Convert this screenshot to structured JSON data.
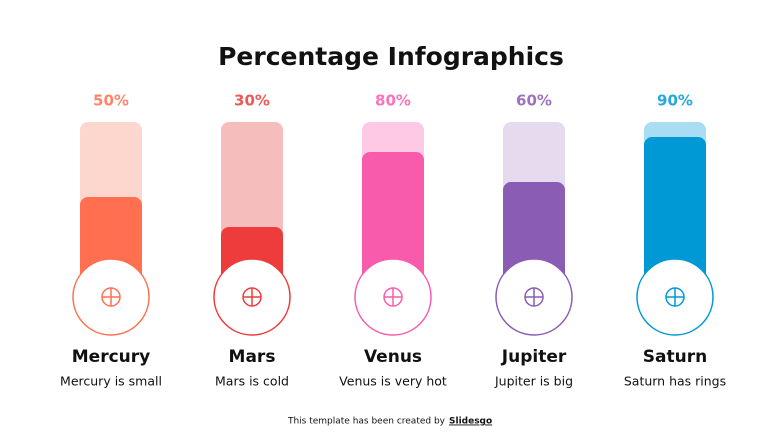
{
  "chart_data": {
    "type": "bar",
    "title": "Percentage Infographics",
    "categories": [
      "Mercury",
      "Mars",
      "Venus",
      "Jupiter",
      "Saturn"
    ],
    "descriptions": [
      "Mercury is small",
      "Mars is cold",
      "Venus is very hot",
      "Jupiter is big",
      "Saturn has rings"
    ],
    "values": [
      50,
      30,
      80,
      60,
      90
    ],
    "value_labels": [
      "50%",
      "30%",
      "80%",
      "60%",
      "90%"
    ],
    "colors": [
      "#ff6f50",
      "#ee3c3c",
      "#f95bac",
      "#8a5cb4",
      "#0099d6"
    ],
    "track_colors": [
      "#fdd6cd",
      "#f6bdbd",
      "#fdc9e4",
      "#e5daee",
      "#a8ddf3"
    ],
    "ylim": [
      0,
      100
    ]
  },
  "footer": {
    "text": "This template has been created by",
    "link": "Slidesgo"
  }
}
